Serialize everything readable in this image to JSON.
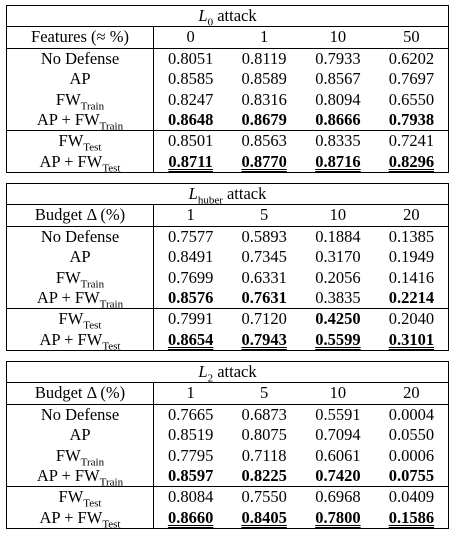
{
  "sections": [
    {
      "title_var": "L",
      "title_sub": "0",
      "title_rest": " attack",
      "header_label": "Features (≈ %)",
      "columns": [
        "0",
        "1",
        "10",
        "50"
      ],
      "rows": [
        {
          "label": "No Defense",
          "label_sub": "",
          "values": [
            "0.8051",
            "0.8119",
            "0.7933",
            "0.6202"
          ],
          "styles": [
            "",
            "",
            "",
            ""
          ]
        },
        {
          "label": "AP",
          "label_sub": "",
          "values": [
            "0.8585",
            "0.8589",
            "0.8567",
            "0.7697"
          ],
          "styles": [
            "",
            "",
            "",
            ""
          ]
        },
        {
          "label": "FW",
          "label_sub": "Train",
          "values": [
            "0.8247",
            "0.8316",
            "0.8094",
            "0.6550"
          ],
          "styles": [
            "",
            "",
            "",
            ""
          ]
        },
        {
          "label": "AP + FW",
          "label_sub": "Train",
          "values": [
            "0.8648",
            "0.8679",
            "0.8666",
            "0.7938"
          ],
          "styles": [
            "b",
            "b",
            "b",
            "b"
          ]
        },
        {
          "label": "FW",
          "label_sub": "Test",
          "values": [
            "0.8501",
            "0.8563",
            "0.8335",
            "0.7241"
          ],
          "styles": [
            "",
            "",
            "",
            ""
          ]
        },
        {
          "label": "AP + FW",
          "label_sub": "Test",
          "values": [
            "0.8711",
            "0.8770",
            "0.8716",
            "0.8296"
          ],
          "styles": [
            "bu",
            "bu",
            "bu",
            "bu"
          ]
        }
      ]
    },
    {
      "title_var": "L",
      "title_sub": "huber",
      "title_rest": " attack",
      "header_label": "Budget Δ (%)",
      "columns": [
        "1",
        "5",
        "10",
        "20"
      ],
      "rows": [
        {
          "label": "No Defense",
          "label_sub": "",
          "values": [
            "0.7577",
            "0.5893",
            "0.1884",
            "0.1385"
          ],
          "styles": [
            "",
            "",
            "",
            ""
          ]
        },
        {
          "label": "AP",
          "label_sub": "",
          "values": [
            "0.8491",
            "0.7345",
            "0.3170",
            "0.1949"
          ],
          "styles": [
            "",
            "",
            "",
            ""
          ]
        },
        {
          "label": "FW",
          "label_sub": "Train",
          "values": [
            "0.7699",
            "0.6331",
            "0.2056",
            "0.1416"
          ],
          "styles": [
            "",
            "",
            "",
            ""
          ]
        },
        {
          "label": "AP + FW",
          "label_sub": "Train",
          "values": [
            "0.8576",
            "0.7631",
            "0.3835",
            "0.2214"
          ],
          "styles": [
            "b",
            "b",
            "",
            "b"
          ]
        },
        {
          "label": "FW",
          "label_sub": "Test",
          "values": [
            "0.7991",
            "0.7120",
            "0.4250",
            "0.2040"
          ],
          "styles": [
            "",
            "",
            "b",
            ""
          ]
        },
        {
          "label": "AP + FW",
          "label_sub": "Test",
          "values": [
            "0.8654",
            "0.7943",
            "0.5599",
            "0.3101"
          ],
          "styles": [
            "bu",
            "bu",
            "bu",
            "bu"
          ]
        }
      ]
    },
    {
      "title_var": "L",
      "title_sub": "2",
      "title_rest": " attack",
      "header_label": "Budget Δ (%)",
      "columns": [
        "1",
        "5",
        "10",
        "20"
      ],
      "rows": [
        {
          "label": "No Defense",
          "label_sub": "",
          "values": [
            "0.7665",
            "0.6873",
            "0.5591",
            "0.0004"
          ],
          "styles": [
            "",
            "",
            "",
            ""
          ]
        },
        {
          "label": "AP",
          "label_sub": "",
          "values": [
            "0.8519",
            "0.8075",
            "0.7094",
            "0.0550"
          ],
          "styles": [
            "",
            "",
            "",
            ""
          ]
        },
        {
          "label": "FW",
          "label_sub": "Train",
          "values": [
            "0.7795",
            "0.7118",
            "0.6061",
            "0.0006"
          ],
          "styles": [
            "",
            "",
            "",
            ""
          ]
        },
        {
          "label": "AP + FW",
          "label_sub": "Train",
          "values": [
            "0.8597",
            "0.8225",
            "0.7420",
            "0.0755"
          ],
          "styles": [
            "b",
            "b",
            "b",
            "b"
          ]
        },
        {
          "label": "FW",
          "label_sub": "Test",
          "values": [
            "0.8084",
            "0.7550",
            "0.6968",
            "0.0409"
          ],
          "styles": [
            "",
            "",
            "",
            ""
          ]
        },
        {
          "label": "AP + FW",
          "label_sub": "Test",
          "values": [
            "0.8660",
            "0.8405",
            "0.7800",
            "0.1586"
          ],
          "styles": [
            "bu",
            "bu",
            "bu",
            "bu"
          ]
        }
      ]
    }
  ]
}
